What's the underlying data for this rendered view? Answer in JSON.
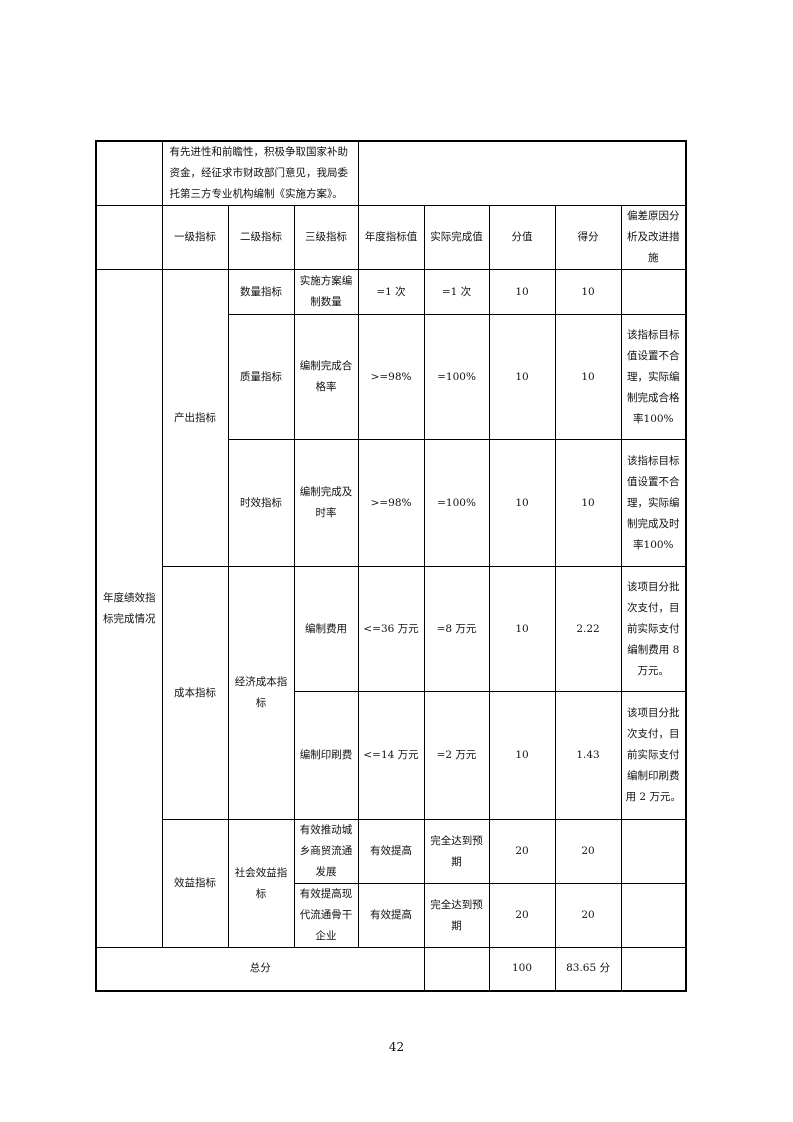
{
  "intro_text": "有先进性和前瞻性，积极争取国家补助资金，经征求市财政部门意见，我局委托第三方专业机构编制《实施方案》。",
  "headers": [
    "一级指标",
    "二级指标",
    "三级指标",
    "年度指标值",
    "实际完成值",
    "分值",
    "得分",
    "偏差原因分析及改进措施"
  ],
  "section_label": "年度绩效指标完成情况",
  "level1": [
    "产出指标",
    "成本指标",
    "效益指标"
  ],
  "level2": [
    "数量指标",
    "质量指标",
    "时效指标",
    "经济成本指标",
    "社会效益指标"
  ],
  "rows": [
    {
      "l3": "实施方案编制数量",
      "target": "=1 次",
      "actual": "=1 次",
      "weight": "10",
      "score": "10",
      "note": ""
    },
    {
      "l3": "编制完成合格率",
      "target": ">=98%",
      "actual": "=100%",
      "weight": "10",
      "score": "10",
      "note": "该指标目标值设置不合理，实际编制完成合格率100%"
    },
    {
      "l3": "编制完成及时率",
      "target": ">=98%",
      "actual": "=100%",
      "weight": "10",
      "score": "10",
      "note": "该指标目标值设置不合理，实际编制完成及时率100%"
    },
    {
      "l3": "编制费用",
      "target": "<=36 万元",
      "actual": "=8 万元",
      "weight": "10",
      "score": "2.22",
      "note": "该项目分批次支付，目前实际支付编制费用 8 万元。"
    },
    {
      "l3": "编制印刷费",
      "target": "<=14 万元",
      "actual": "=2 万元",
      "weight": "10",
      "score": "1.43",
      "note": "该项目分批次支付，目前实际支付编制印刷费用 2 万元。"
    },
    {
      "l3": "有效推动城乡商贸流通发展",
      "target": "有效提高",
      "actual": "完全达到预期",
      "weight": "20",
      "score": "20",
      "note": ""
    },
    {
      "l3": "有效提高现代流通骨干企业",
      "target": "有效提高",
      "actual": "完全达到预期",
      "weight": "20",
      "score": "20",
      "note": ""
    }
  ],
  "total": {
    "label": "总分",
    "weight": "100",
    "score": "83.65 分"
  },
  "page_number": "42"
}
